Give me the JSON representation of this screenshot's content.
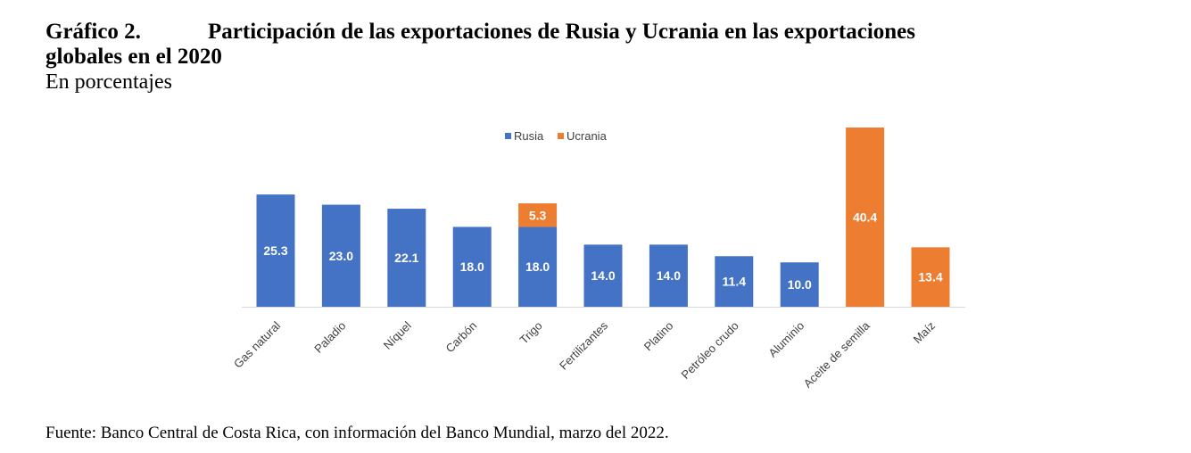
{
  "header": {
    "figure_number": "Gráfico 2.",
    "title_line1": "Participación de las exportaciones de Rusia y Ucrania en las exportaciones",
    "title_line2": "globales en el 2020",
    "subtitle": "En porcentajes"
  },
  "source": "Fuente: Banco Central de Costa Rica, con información del Banco Mundial, marzo del 2022.",
  "chart_data": {
    "type": "bar",
    "stacked": true,
    "categories": [
      "Gas natural",
      "Paladio",
      "Níquel",
      "Carbón",
      "Trigo",
      "Fertilizantes",
      "Platino",
      "Petróleo crudo",
      "Aluminio",
      "Aceite de semilla",
      "Maíz"
    ],
    "series": [
      {
        "name": "Rusia",
        "color": "#4472C4",
        "values": [
          25.3,
          23.0,
          22.1,
          18.0,
          18.0,
          14.0,
          14.0,
          11.4,
          10.0,
          null,
          null
        ]
      },
      {
        "name": "Ucrania",
        "color": "#ED7D31",
        "values": [
          null,
          null,
          null,
          null,
          5.3,
          null,
          null,
          null,
          null,
          40.4,
          13.4
        ]
      }
    ],
    "legend_position": "top-center",
    "data_labels": true,
    "ylim": [
      0,
      40.4
    ],
    "grid": false
  }
}
